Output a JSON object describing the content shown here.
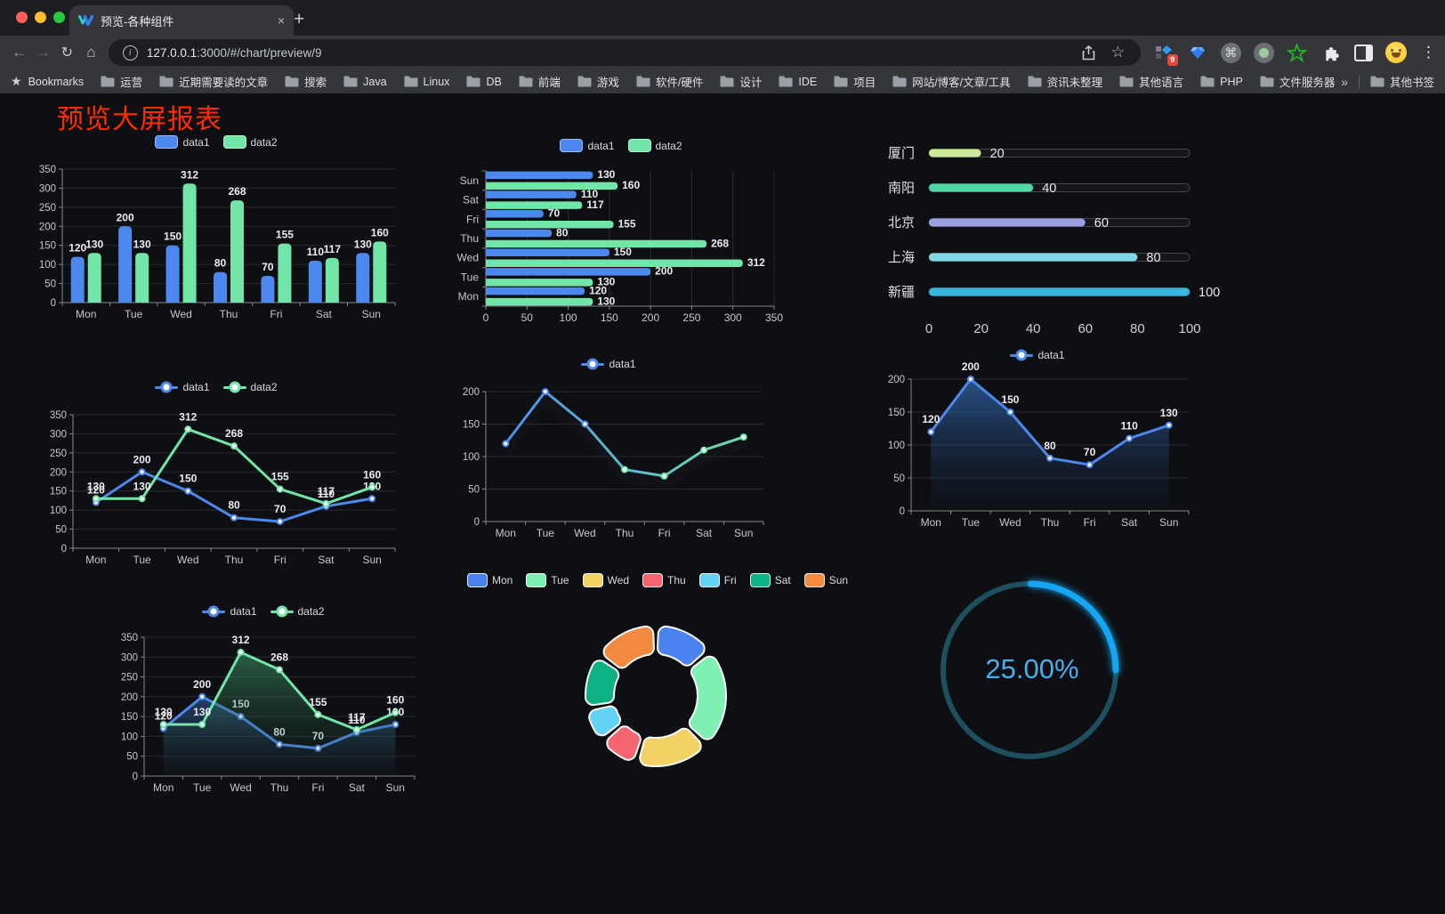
{
  "browser": {
    "traffic_lights": [
      "#ff5f57",
      "#febc2e",
      "#28c840"
    ],
    "tab": {
      "title": "预览-各种组件",
      "close_glyph": "×"
    },
    "new_tab_glyph": "+",
    "icons": {
      "back": "←",
      "forward": "→",
      "reload": "↻",
      "home": "⌂",
      "star": "☆",
      "command": "⌘",
      "menu": "⋮",
      "info": "i"
    },
    "url": {
      "host": "127.0.0.1",
      "rest": ":3000/#/chart/preview/9"
    },
    "extension_badge": "9"
  },
  "bookmarks": {
    "star_label": "Bookmarks",
    "items": [
      "运营",
      "近期需要读的文章",
      "搜索",
      "Java",
      "Linux",
      "DB",
      "前端",
      "游戏",
      "软件/硬件",
      "设计",
      "IDE",
      "项目",
      "网站/博客/文章/工具",
      "资讯未整理",
      "其他语言",
      "PHP",
      "文件服务器"
    ],
    "overflow_glyph": "»",
    "other_label": "其他书签"
  },
  "page": {
    "title": "预览大屏报表",
    "title_color": "#fe2c00",
    "background": "#0e0f13"
  },
  "chart_data": [
    {
      "id": "bar-vertical",
      "type": "bar",
      "categories": [
        "Mon",
        "Tue",
        "Wed",
        "Thu",
        "Fri",
        "Sat",
        "Sun"
      ],
      "series": [
        {
          "name": "data1",
          "color": "#4d88ee",
          "values": [
            120,
            200,
            150,
            80,
            70,
            110,
            130
          ]
        },
        {
          "name": "data2",
          "color": "#72e6a9",
          "values": [
            130,
            130,
            312,
            268,
            155,
            117,
            160
          ]
        }
      ],
      "ylim": [
        0,
        350
      ],
      "ystep": 50,
      "grid": true,
      "legend_position": "top",
      "labels": true
    },
    {
      "id": "bar-horizontal",
      "type": "bar-horizontal",
      "categories": [
        "Mon",
        "Tue",
        "Wed",
        "Thu",
        "Fri",
        "Sat",
        "Sun"
      ],
      "series": [
        {
          "name": "data1",
          "color": "#4d88ee",
          "values": [
            120,
            200,
            150,
            80,
            70,
            110,
            130
          ]
        },
        {
          "name": "data2",
          "color": "#72e6a9",
          "values": [
            130,
            130,
            312,
            268,
            155,
            117,
            160
          ]
        }
      ],
      "xlim": [
        0,
        350
      ],
      "xstep": 50,
      "grid": true,
      "legend_position": "top",
      "labels": true
    },
    {
      "id": "progress",
      "type": "progress",
      "rows": [
        {
          "label": "厦门",
          "value": 20,
          "color": "#cbe998"
        },
        {
          "label": "南阳",
          "value": 40,
          "color": "#4ed8a4"
        },
        {
          "label": "北京",
          "value": 60,
          "color": "#9aa0e2"
        },
        {
          "label": "上海",
          "value": 80,
          "color": "#7fd9e4"
        },
        {
          "label": "新疆",
          "value": 100,
          "color": "#38b6de"
        }
      ],
      "xlim": [
        0,
        100
      ],
      "xticks": [
        0,
        20,
        40,
        60,
        80,
        100
      ]
    },
    {
      "id": "line-dual",
      "type": "line",
      "categories": [
        "Mon",
        "Tue",
        "Wed",
        "Thu",
        "Fri",
        "Sat",
        "Sun"
      ],
      "series": [
        {
          "name": "data1",
          "color": "#4d88ee",
          "values": [
            120,
            200,
            150,
            80,
            70,
            110,
            130
          ]
        },
        {
          "name": "data2",
          "color": "#72e6a9",
          "values": [
            130,
            130,
            312,
            268,
            155,
            117,
            160
          ]
        }
      ],
      "ylim": [
        0,
        350
      ],
      "ystep": 50,
      "grid": true,
      "legend_position": "top",
      "labels": true
    },
    {
      "id": "line-gradient",
      "type": "line",
      "categories": [
        "Mon",
        "Tue",
        "Wed",
        "Thu",
        "Fri",
        "Sat",
        "Sun"
      ],
      "series": [
        {
          "name": "data1",
          "color": "#4d88ee",
          "color2": "#72e6a9",
          "values": [
            120,
            200,
            150,
            80,
            70,
            110,
            130
          ]
        }
      ],
      "ylim": [
        0,
        200
      ],
      "ystep": 50,
      "grid": true,
      "legend_position": "top",
      "labels": false
    },
    {
      "id": "area-single",
      "type": "area",
      "categories": [
        "Mon",
        "Tue",
        "Wed",
        "Thu",
        "Fri",
        "Sat",
        "Sun"
      ],
      "series": [
        {
          "name": "data1",
          "color": "#4d88ee",
          "values": [
            120,
            200,
            150,
            80,
            70,
            110,
            130
          ],
          "area": [
            "rgba(50,105,175,0.75)",
            "rgba(25,45,80,0.05)"
          ]
        }
      ],
      "ylim": [
        0,
        200
      ],
      "ystep": 50,
      "grid": true,
      "legend_position": "top",
      "labels": true
    },
    {
      "id": "area-dual",
      "type": "area",
      "categories": [
        "Mon",
        "Tue",
        "Wed",
        "Thu",
        "Fri",
        "Sat",
        "Sun"
      ],
      "series": [
        {
          "name": "data1",
          "color": "#4d88ee",
          "values": [
            120,
            200,
            150,
            80,
            70,
            110,
            130
          ],
          "area": [
            "rgba(60,110,185,0.5)",
            "rgba(30,50,90,0.04)"
          ]
        },
        {
          "name": "data2",
          "color": "#72e6a9",
          "values": [
            130,
            130,
            312,
            268,
            155,
            117,
            160
          ],
          "area": [
            "rgba(64,160,108,0.55)",
            "rgba(25,60,45,0.04)"
          ]
        }
      ],
      "ylim": [
        0,
        350
      ],
      "ystep": 50,
      "grid": true,
      "legend_position": "top",
      "labels": true
    },
    {
      "id": "donut",
      "type": "pie",
      "categories": [
        "Mon",
        "Tue",
        "Wed",
        "Thu",
        "Fri",
        "Sat",
        "Sun"
      ],
      "values": [
        120,
        200,
        150,
        80,
        70,
        110,
        130
      ],
      "colors": [
        "#4a82f0",
        "#7ef0b2",
        "#f2d264",
        "#f5656f",
        "#62d2f5",
        "#0eb184",
        "#f28a40"
      ],
      "legend_position": "top",
      "donut": true
    },
    {
      "id": "gauge",
      "type": "gauge",
      "value": 25,
      "display": "25.00%",
      "color": "#14a6f0",
      "track_color": "#1d4f5e",
      "text_color": "#4badee"
    }
  ]
}
